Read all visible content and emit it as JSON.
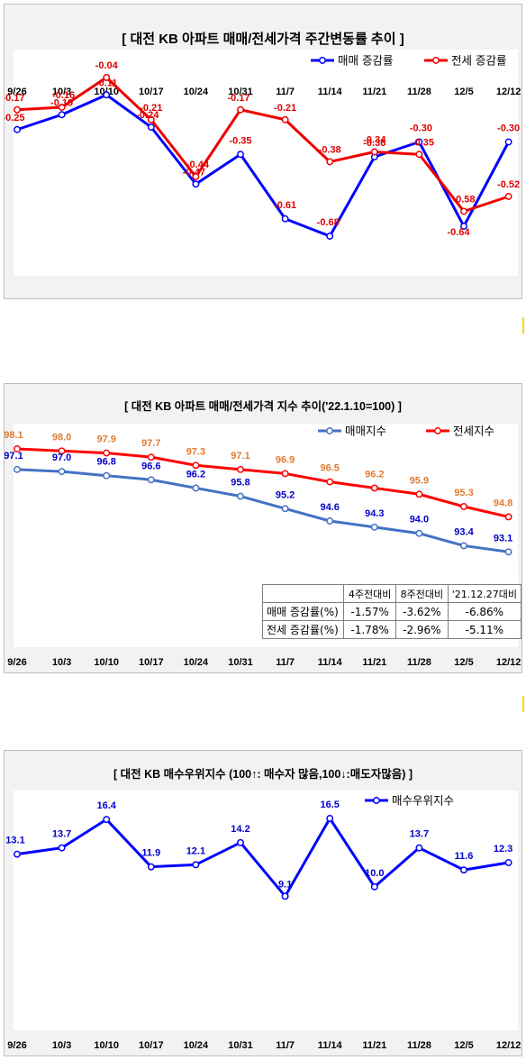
{
  "chart_data": [
    {
      "type": "line",
      "title": "[ 대전  KB 아파트 매매/전세가격 주간변동률 추이 ]",
      "categories": [
        "9/26",
        "10/3",
        "10/10",
        "10/17",
        "10/24",
        "10/31",
        "11/7",
        "11/14",
        "11/21",
        "11/28",
        "12/5",
        "12/12"
      ],
      "series": [
        {
          "name": "매매 증감률",
          "color": "#0000ff",
          "label_color": "#e00000",
          "values": [
            -0.25,
            -0.19,
            -0.11,
            -0.24,
            -0.47,
            -0.35,
            -0.61,
            -0.68,
            -0.36,
            -0.3,
            -0.64,
            -0.3
          ],
          "labels": [
            "-0.25",
            "-0.19",
            "-0.11",
            "-0.24",
            "-0.47",
            "-0.35",
            "-0.61",
            "-0.68",
            "-0.36",
            "-0.30",
            "-0.64",
            "-0.30"
          ]
        },
        {
          "name": "전세 증감률",
          "color": "#ee0000",
          "label_color": "#e00000",
          "values": [
            -0.17,
            -0.16,
            -0.04,
            -0.21,
            -0.44,
            -0.17,
            -0.21,
            -0.38,
            -0.34,
            -0.35,
            -0.58,
            -0.52
          ],
          "labels": [
            "-0.17",
            "-0.16",
            "-0.04",
            "-0.21",
            "-0.44",
            "-0.17",
            "-0.21",
            "-0.38",
            "-0.34",
            "-0.35",
            "-0.58",
            "-0.52"
          ]
        }
      ],
      "ylim": [
        -0.8,
        0.0
      ],
      "xaxis_position": "top",
      "legend": "top-right",
      "grid": false
    },
    {
      "type": "line",
      "title": "[  대전  KB 아파트 매매/전세가격 지수 추이('22.1.10=100)  ]",
      "categories": [
        "9/26",
        "10/3",
        "10/10",
        "10/17",
        "10/24",
        "10/31",
        "11/7",
        "11/14",
        "11/21",
        "11/28",
        "12/5",
        "12/12"
      ],
      "series": [
        {
          "name": "매매지수",
          "color": "#4472c4",
          "label_color": "#0000cc",
          "values": [
            97.1,
            97.0,
            96.8,
            96.6,
            96.2,
            95.8,
            95.2,
            94.6,
            94.3,
            94.0,
            93.4,
            93.1
          ],
          "labels": [
            "97.1",
            "97.0",
            "96.8",
            "96.6",
            "96.2",
            "95.8",
            "95.2",
            "94.6",
            "94.3",
            "94.0",
            "93.4",
            "93.1"
          ]
        },
        {
          "name": "전세지수",
          "color": "#ff0000",
          "label_color": "#e07b30",
          "values": [
            98.1,
            98.0,
            97.9,
            97.7,
            97.3,
            97.1,
            96.9,
            96.5,
            96.2,
            95.9,
            95.3,
            94.8
          ],
          "labels": [
            "98.1",
            "98.0",
            "97.9",
            "97.7",
            "97.3",
            "97.1",
            "96.9",
            "96.5",
            "96.2",
            "95.9",
            "95.3",
            "94.8"
          ]
        }
      ],
      "ylim": [
        89.0,
        99.5
      ],
      "xaxis_position": "bottom",
      "legend": "top-right",
      "grid": false,
      "table": {
        "headers": [
          "4주전대비",
          "8주전대비",
          "'21.12.27대비"
        ],
        "rows": [
          {
            "label": "매매 증감률(%)",
            "cells": [
              "-1.57%",
              "-3.62%",
              "-6.86%"
            ]
          },
          {
            "label": "전세 증감률(%)",
            "cells": [
              "-1.78%",
              "-2.96%",
              "-5.11%"
            ]
          }
        ]
      }
    },
    {
      "type": "line",
      "title": "[  대전  KB 매수우위지수 (100↑: 매수자 많음,100↓:매도자많음)  ]",
      "categories": [
        "9/26",
        "10/3",
        "10/10",
        "10/17",
        "10/24",
        "10/31",
        "11/7",
        "11/14",
        "11/21",
        "11/28",
        "12/5",
        "12/12"
      ],
      "series": [
        {
          "name": "매수우위지수",
          "color": "#0000ff",
          "label_color": "#0000cc",
          "values": [
            13.1,
            13.7,
            16.4,
            11.9,
            12.1,
            14.2,
            9.1,
            16.5,
            10.0,
            13.7,
            11.6,
            12.3
          ],
          "labels": [
            "13.1",
            "13.7",
            "16.4",
            "11.9",
            "12.1",
            "14.2",
            "9.1",
            "16.5",
            "10.0",
            "13.7",
            "11.6",
            "12.3"
          ]
        }
      ],
      "ylim": [
        -4.5,
        19.5
      ],
      "xaxis_position": "bottom",
      "legend": "top-right",
      "grid": false
    }
  ]
}
